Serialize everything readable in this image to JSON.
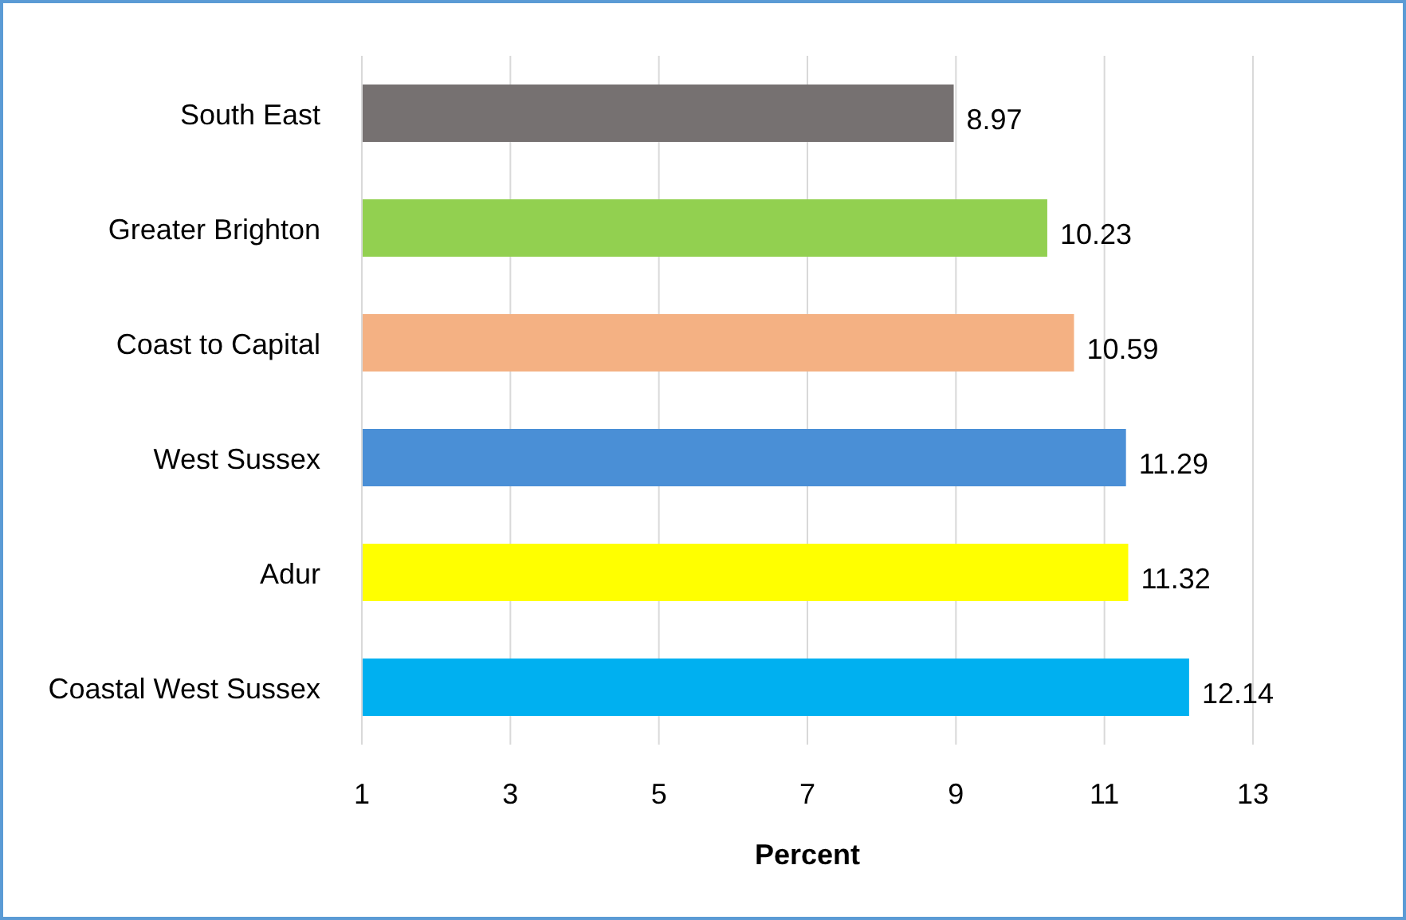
{
  "chart_data": {
    "type": "bar",
    "orientation": "horizontal",
    "xlabel": "Percent",
    "categories": [
      "South East",
      "Greater Brighton",
      "Coast to Capital",
      "West Sussex",
      "Adur",
      "Coastal West Sussex"
    ],
    "values": [
      8.97,
      10.23,
      10.59,
      11.29,
      11.32,
      12.14
    ],
    "colors": [
      "#767171",
      "#92d050",
      "#f4b183",
      "#4a8fd6",
      "#ffff00",
      "#00b0f0"
    ],
    "xlim": [
      1,
      13
    ],
    "xticks": [
      1,
      3,
      5,
      7,
      9,
      11,
      13
    ],
    "grid": "x",
    "data_labels": true
  }
}
